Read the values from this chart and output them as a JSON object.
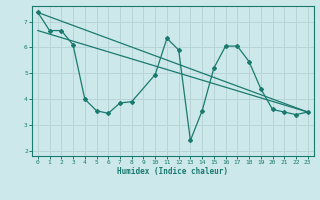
{
  "xlabel": "Humidex (Indice chaleur)",
  "bg_color": "#cce8ea",
  "grid_color": "#b8d4d6",
  "line_color": "#1a7a6e",
  "xlim": [
    -0.5,
    23.5
  ],
  "ylim": [
    1.8,
    7.6
  ],
  "xticks": [
    0,
    1,
    2,
    3,
    4,
    5,
    6,
    7,
    8,
    9,
    10,
    11,
    12,
    13,
    14,
    15,
    16,
    17,
    18,
    19,
    20,
    21,
    22,
    23
  ],
  "yticks": [
    2,
    3,
    4,
    5,
    6,
    7
  ],
  "line1_x": [
    0,
    1,
    2,
    3,
    4,
    5,
    6,
    7,
    8,
    10,
    11,
    12,
    13,
    14,
    15,
    16,
    17,
    18,
    19,
    20,
    21,
    22,
    23
  ],
  "line1_y": [
    7.35,
    6.65,
    6.65,
    6.1,
    4.0,
    3.55,
    3.45,
    3.85,
    3.9,
    4.95,
    6.35,
    5.9,
    2.4,
    3.55,
    5.2,
    6.05,
    6.05,
    5.45,
    4.4,
    3.6,
    3.5,
    3.4,
    3.5
  ],
  "line2_x": [
    0,
    23
  ],
  "line2_y": [
    7.35,
    3.5
  ],
  "line3_x": [
    0,
    23
  ],
  "line3_y": [
    6.65,
    3.5
  ]
}
